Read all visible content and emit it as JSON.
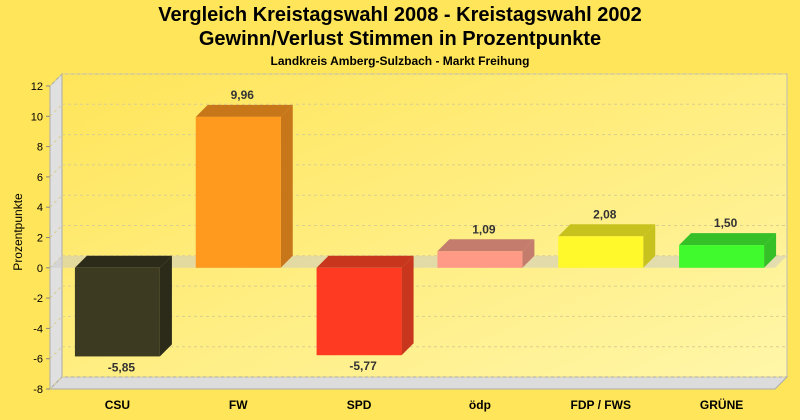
{
  "chart_data": {
    "type": "bar",
    "title": "Vergleich Kreistagswahl 2008 - Kreistagswahl 2002",
    "title2": "Gewinn/Verlust Stimmen in Prozentpunkte",
    "subtitle": "Landkreis Amberg-Sulzbach - Markt Freihung",
    "xlabel": "",
    "ylabel": "Prozentpunkte",
    "ylim": [
      -8,
      12
    ],
    "yticks": [
      "-8",
      "-6",
      "-4",
      "-2",
      "0",
      "2",
      "4",
      "6",
      "8",
      "10",
      "12"
    ],
    "categories": [
      "CSU",
      "FW",
      "SPD",
      "ödp",
      "FDP / FWS",
      "GRÜNE"
    ],
    "values": [
      -5.85,
      9.96,
      -5.77,
      1.09,
      2.08,
      1.5
    ],
    "value_labels": [
      "-5,85",
      "9,96",
      "-5,77",
      "1,09",
      "2,08",
      "1,50"
    ],
    "colors": [
      "#3d3a22",
      "#ff9a1e",
      "#ff3a22",
      "#ff9a86",
      "#fff82a",
      "#40fa2e"
    ],
    "side_colors": [
      "#2c2a18",
      "#c8761a",
      "#c8361e",
      "#c47c6c",
      "#c8c21e",
      "#34c026"
    ],
    "grid": true
  }
}
